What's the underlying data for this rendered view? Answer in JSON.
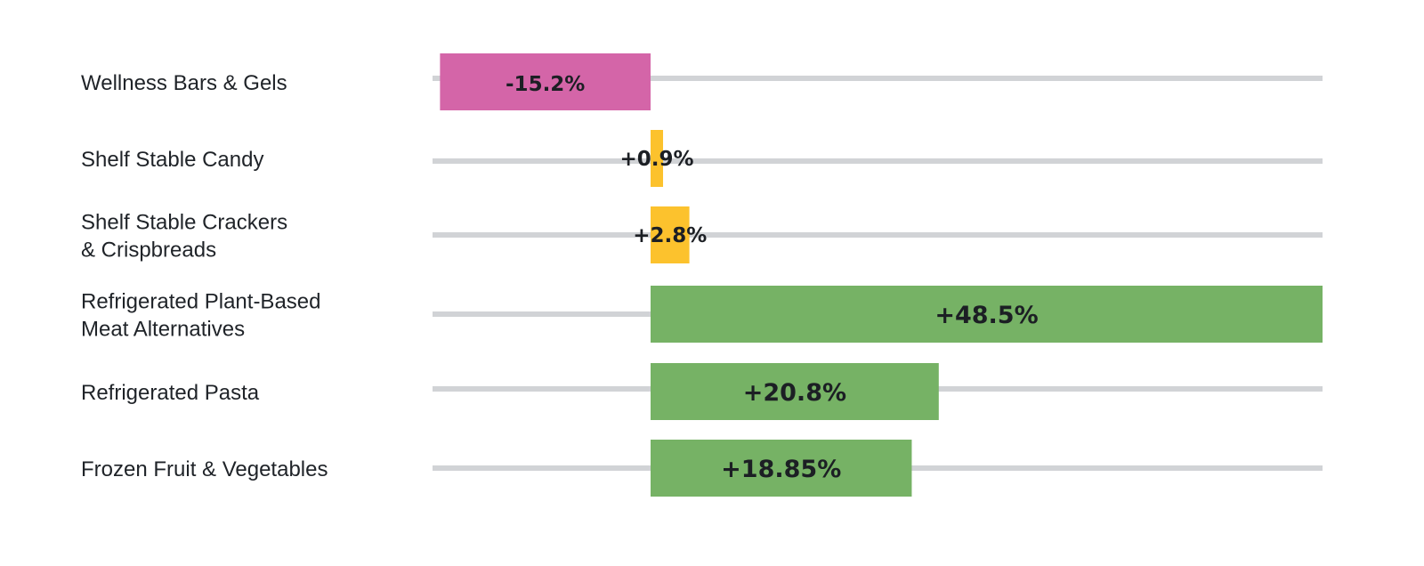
{
  "chart_data": {
    "type": "bar",
    "orientation": "horizontal",
    "categories": [
      [
        "Wellness Bars & Gels"
      ],
      [
        "Shelf Stable Candy"
      ],
      [
        "Shelf Stable Crackers",
        "& Crispbreads"
      ],
      [
        "Refrigerated Plant-Based",
        "Meat Alternatives"
      ],
      [
        "Refrigerated Pasta"
      ],
      [
        "Frozen Fruit & Vegetables"
      ]
    ],
    "values": [
      -15.2,
      0.9,
      2.8,
      48.5,
      20.8,
      18.85
    ],
    "value_labels": [
      "-15.2%",
      "+0.9%",
      "+2.8%",
      "+48.5%",
      "+20.8%",
      "+18.85%"
    ],
    "xlim": [
      -15.2,
      48.5
    ],
    "grid": false,
    "legend": "none",
    "colors": {
      "negative": "#d465a8",
      "small_positive": "#fcc22d",
      "positive": "#76b265",
      "track": "#d1d3d6",
      "label": "#1f2328"
    }
  }
}
